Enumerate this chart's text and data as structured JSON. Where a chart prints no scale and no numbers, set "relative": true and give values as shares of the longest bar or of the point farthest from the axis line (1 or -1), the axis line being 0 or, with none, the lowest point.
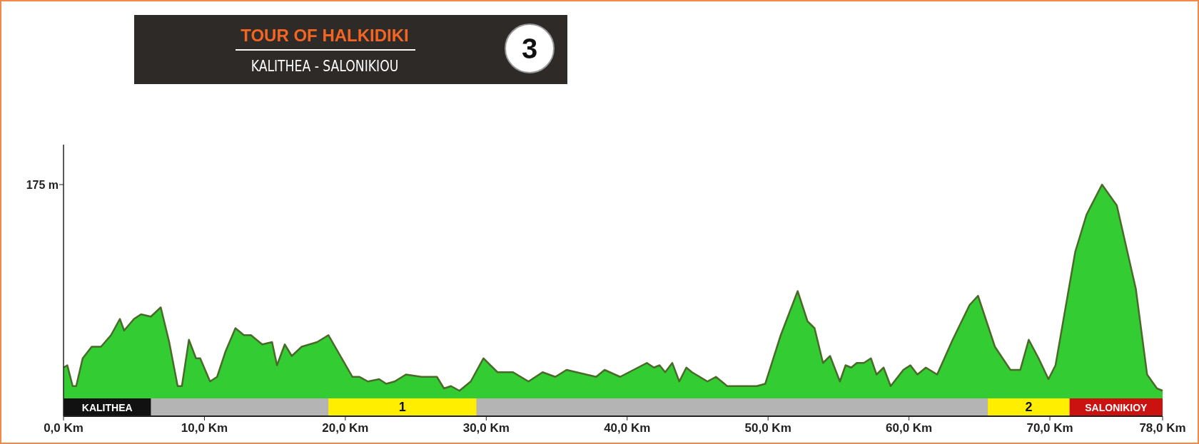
{
  "chart_data": {
    "type": "area",
    "title": "TOUR OF HALKIDIKI",
    "subtitle": "KALITHEA - SALONIKIOU",
    "relative": true,
    "annotations": [
      "3",
      "175 m"
    ],
    "xlim": [
      0,
      78
    ],
    "xticks": [
      {
        "value": 0,
        "label": "0,0 Km"
      },
      {
        "value": 10,
        "label": "10,0 Km"
      },
      {
        "value": 20,
        "label": "20,0 Km"
      },
      {
        "value": 30,
        "label": "30,0 Km"
      },
      {
        "value": 40,
        "label": "40,0 Km"
      },
      {
        "value": 50,
        "label": "50,0 Km"
      },
      {
        "value": 60,
        "label": "60,0 Km"
      },
      {
        "value": 70,
        "label": "70,0 Km"
      },
      {
        "value": 78,
        "label": "78,0 Km"
      }
    ],
    "bands": [
      {
        "axis": "x",
        "from": 0,
        "to": 6.2,
        "label": "KALITHEA",
        "color": "#111111"
      },
      {
        "axis": "x",
        "from": 18.8,
        "to": 29.3,
        "label": "1",
        "color": "#ffee00"
      },
      {
        "axis": "x",
        "from": 65.6,
        "to": 71.4,
        "label": "2",
        "color": "#ffee00"
      },
      {
        "axis": "x",
        "from": 71.4,
        "to": 78,
        "label": "SALONIKIOY",
        "color": "#cc1111"
      }
    ],
    "x": [
      0,
      0.27,
      0.65,
      0.9,
      1.36,
      2.0,
      2.66,
      3.37,
      4.0,
      4.3,
      5.0,
      5.5,
      6.2,
      6.9,
      7.5,
      8.1,
      8.4,
      8.9,
      9.4,
      9.7,
      10.4,
      10.9,
      11.5,
      12.2,
      12.8,
      13.3,
      14.1,
      14.8,
      15.15,
      15.7,
      16.2,
      16.9,
      18.0,
      18.8,
      20.5,
      21.0,
      21.6,
      22.4,
      22.9,
      23.5,
      24.3,
      25.4,
      26.5,
      27.0,
      27.5,
      28.1,
      28.9,
      29.8,
      30.8,
      31.9,
      33.0,
      34.0,
      34.9,
      35.7,
      37.8,
      38.4,
      39.5,
      41.4,
      41.9,
      42.3,
      42.7,
      43.2,
      43.7,
      44.2,
      44.6,
      45.7,
      46.3,
      47.1,
      49.2,
      49.8,
      50.9,
      52.1,
      52.8,
      53.3,
      53.9,
      54.4,
      55.1,
      55.5,
      55.9,
      56.3,
      56.8,
      57.3,
      57.7,
      58.2,
      58.7,
      59.6,
      60.1,
      60.6,
      61.2,
      62.0,
      63.1,
      64.3,
      64.9,
      66.1,
      67.2,
      67.9,
      68.5,
      69.2,
      69.9,
      70.4,
      71.8,
      72.6,
      73.7,
      74.75,
      76.1,
      76.9,
      77.6,
      78
    ],
    "series": [
      {
        "color": "#33cc33",
        "values": [
          0.21,
          0.22,
          0.13,
          0.13,
          0.25,
          0.3,
          0.3,
          0.35,
          0.42,
          0.37,
          0.42,
          0.44,
          0.43,
          0.47,
          0.32,
          0.13,
          0.13,
          0.33,
          0.25,
          0.25,
          0.15,
          0.17,
          0.28,
          0.38,
          0.35,
          0.35,
          0.31,
          0.32,
          0.22,
          0.31,
          0.26,
          0.3,
          0.32,
          0.35,
          0.17,
          0.17,
          0.15,
          0.16,
          0.14,
          0.15,
          0.18,
          0.17,
          0.17,
          0.12,
          0.13,
          0.11,
          0.15,
          0.25,
          0.19,
          0.19,
          0.15,
          0.19,
          0.17,
          0.2,
          0.17,
          0.2,
          0.17,
          0.23,
          0.21,
          0.22,
          0.19,
          0.23,
          0.15,
          0.21,
          0.19,
          0.15,
          0.17,
          0.13,
          0.13,
          0.14,
          0.35,
          0.54,
          0.41,
          0.38,
          0.23,
          0.26,
          0.15,
          0.22,
          0.21,
          0.23,
          0.23,
          0.25,
          0.18,
          0.21,
          0.13,
          0.2,
          0.22,
          0.18,
          0.21,
          0.18,
          0.33,
          0.48,
          0.52,
          0.3,
          0.2,
          0.2,
          0.33,
          0.25,
          0.16,
          0.22,
          0.71,
          0.87,
          1.0,
          0.91,
          0.55,
          0.18,
          0.12,
          0.11
        ]
      }
    ]
  }
}
